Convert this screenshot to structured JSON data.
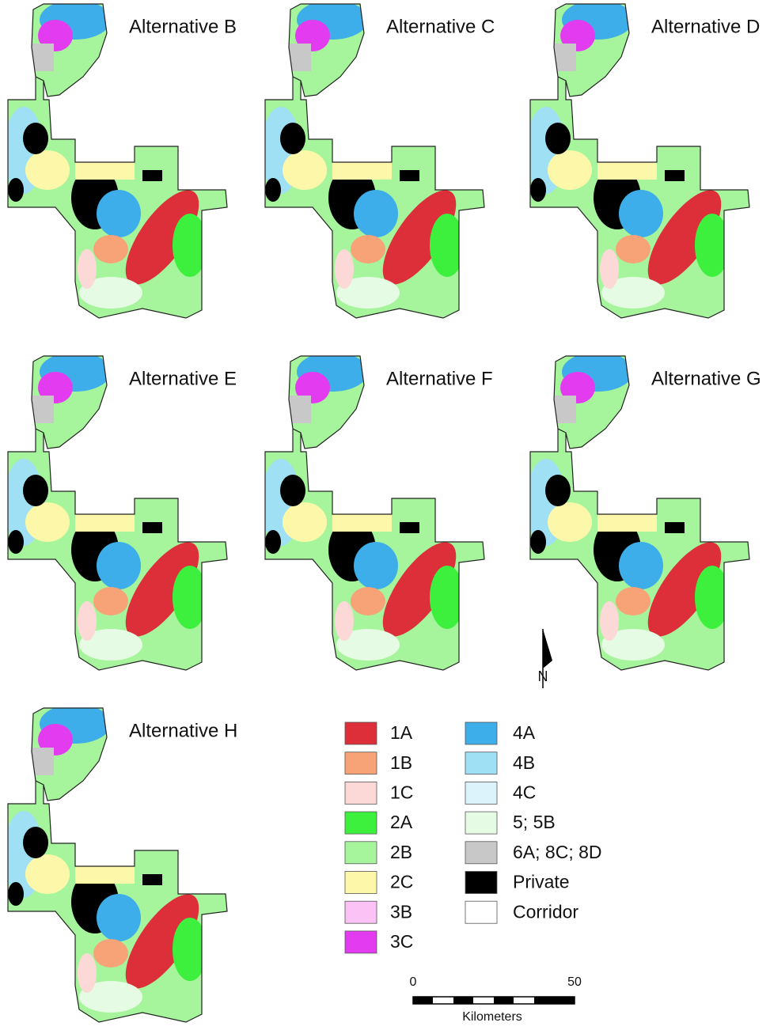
{
  "panels": [
    {
      "title": "Alternative B"
    },
    {
      "title": "Alternative C"
    },
    {
      "title": "Alternative D"
    },
    {
      "title": "Alternative E"
    },
    {
      "title": "Alternative F"
    },
    {
      "title": "Alternative G"
    },
    {
      "title": "Alternative H"
    }
  ],
  "legend": [
    {
      "label": "1A",
      "color": "#dc2f3a"
    },
    {
      "label": "1B",
      "color": "#f7a377"
    },
    {
      "label": "1C",
      "color": "#fcd9d6"
    },
    {
      "label": "2A",
      "color": "#3ef03e"
    },
    {
      "label": "2B",
      "color": "#a6f59c"
    },
    {
      "label": "2C",
      "color": "#fdf8a9"
    },
    {
      "label": "3B",
      "color": "#fbc2f5"
    },
    {
      "label": "3C",
      "color": "#e33cf0"
    },
    {
      "label": "4A",
      "color": "#3daee9"
    },
    {
      "label": "4B",
      "color": "#9fe0f5"
    },
    {
      "label": "4C",
      "color": "#dcf3fb"
    },
    {
      "label": "5; 5B",
      "color": "#e6fbe3"
    },
    {
      "label": "6A; 8C; 8D",
      "color": "#c8c8c8"
    },
    {
      "label": "Private",
      "color": "#000000"
    },
    {
      "label": "Corridor",
      "color": "#ffffff"
    }
  ],
  "north_arrow": {
    "label": "N"
  },
  "scale_bar": {
    "ticks": [
      0,
      50
    ],
    "unit": "Kilometers"
  }
}
